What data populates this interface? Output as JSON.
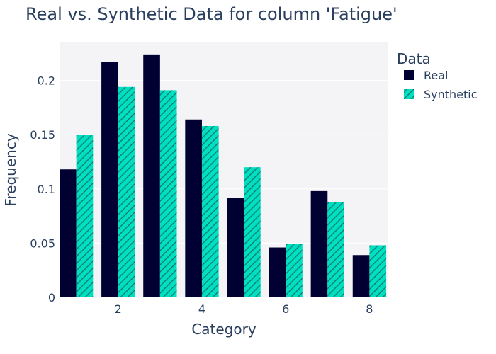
{
  "chart_data": {
    "type": "bar",
    "title": "Real vs. Synthetic Data for column 'Fatigue'",
    "xlabel": "Category",
    "ylabel": "Frequency",
    "categories": [
      1,
      2,
      3,
      4,
      5,
      6,
      7,
      8
    ],
    "x_ticks": [
      2,
      4,
      6,
      8
    ],
    "x_tick_labels": [
      "2",
      "4",
      "6",
      "8"
    ],
    "y_ticks": [
      0,
      0.05,
      0.1,
      0.15,
      0.2
    ],
    "y_tick_labels": [
      "0",
      "0.05",
      "0.1",
      "0.15",
      "0.2"
    ],
    "xlim": [
      0.6,
      8.45
    ],
    "ylim": [
      0,
      0.235
    ],
    "grid": true,
    "legend": {
      "title": "Data",
      "position": "top-right"
    },
    "series": [
      {
        "name": "Real",
        "color": "#000033",
        "pattern": "solid",
        "values": [
          0.118,
          0.217,
          0.224,
          0.164,
          0.092,
          0.046,
          0.098,
          0.039
        ]
      },
      {
        "name": "Synthetic",
        "color": "#00e0c0",
        "pattern": "hatched",
        "values": [
          0.15,
          0.194,
          0.191,
          0.158,
          0.12,
          0.049,
          0.088,
          0.048
        ]
      }
    ]
  }
}
